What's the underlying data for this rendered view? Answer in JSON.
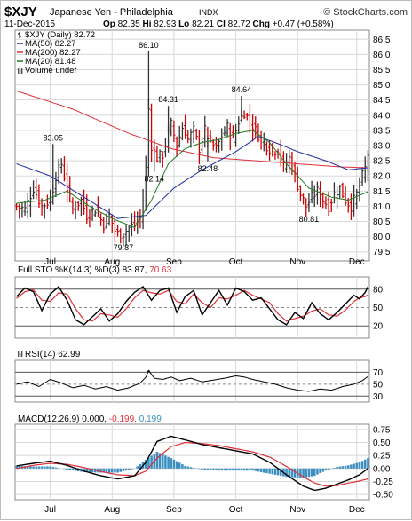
{
  "header": {
    "symbol": "$XJY",
    "name": "Japanese Yen - Philadelphia",
    "exchange": "INDX",
    "source": "© StockCharts.com",
    "date": "11-Dec-2015",
    "quote": {
      "open_label": "Op",
      "open": "82.35",
      "high_label": "Hi",
      "high": "82.93",
      "low_label": "Lo",
      "low": "82.21",
      "close_label": "Cl",
      "close": "82.72",
      "change_label": "Chg",
      "change": "+0.47 (+0.58%)"
    }
  },
  "colors": {
    "up_bar": "#333333",
    "down_bar": "#cc0000",
    "ma50": "#1f2fa0",
    "ma200": "#e0303a",
    "ma20": "#1f7a1f",
    "sto_k": "#000000",
    "sto_d": "#e0303a",
    "rsi": "#000000",
    "rsi_fill": "#2e8b2e",
    "macd": "#000000",
    "signal": "#e0303a",
    "hist": "#3a8fc0",
    "grid": "#d8d8d8"
  },
  "chart_data": [
    {
      "type": "ohlc",
      "id": "price",
      "legend": [
        {
          "key": "price",
          "label": "$XJY (Daily) 82.72",
          "color": "#000000"
        },
        {
          "key": "ma50",
          "label": "MA(50) 82.27",
          "color": "#1f2fa0"
        },
        {
          "key": "ma200",
          "label": "MA(200) 82.27",
          "color": "#e0303a"
        },
        {
          "key": "ma20",
          "label": "MA(20) 81.48",
          "color": "#1f7a1f"
        },
        {
          "key": "volume",
          "label": "Volume undef",
          "color": "#555555"
        }
      ],
      "ylim": [
        79.2,
        86.8
      ],
      "yticks": [
        "79.5",
        "80.0",
        "80.5",
        "81.0",
        "81.5",
        "82.0",
        "82.5",
        "83.0",
        "83.5",
        "84.0",
        "84.5",
        "85.0",
        "85.5",
        "86.0",
        "86.5"
      ],
      "months": [
        {
          "label": "Jul",
          "day": 12
        },
        {
          "label": "Aug",
          "day": 34
        },
        {
          "label": "Sep",
          "day": 56
        },
        {
          "label": "Oct",
          "day": 78
        },
        {
          "label": "Nov",
          "day": 100
        },
        {
          "label": "Dec",
          "day": 121
        }
      ],
      "days": 126,
      "anchors_close": [
        [
          0,
          81.0
        ],
        [
          3,
          80.9
        ],
        [
          6,
          81.6
        ],
        [
          9,
          81.0
        ],
        [
          12,
          81.2
        ],
        [
          14,
          82.0
        ],
        [
          16,
          82.4
        ],
        [
          18,
          81.6
        ],
        [
          20,
          80.9
        ],
        [
          23,
          81.2
        ],
        [
          25,
          80.7
        ],
        [
          28,
          80.9
        ],
        [
          31,
          80.4
        ],
        [
          33,
          80.7
        ],
        [
          35,
          80.2
        ],
        [
          37,
          80.0
        ],
        [
          40,
          80.3
        ],
        [
          42,
          80.4
        ],
        [
          44,
          80.6
        ],
        [
          45,
          81.2
        ],
        [
          46,
          82.3
        ],
        [
          47,
          84.2
        ],
        [
          48,
          83.0
        ],
        [
          50,
          82.6
        ],
        [
          52,
          82.7
        ],
        [
          54,
          83.4
        ],
        [
          55,
          83.7
        ],
        [
          57,
          83.0
        ],
        [
          59,
          83.6
        ],
        [
          61,
          83.2
        ],
        [
          63,
          83.5
        ],
        [
          65,
          82.9
        ],
        [
          67,
          83.5
        ],
        [
          69,
          83.1
        ],
        [
          71,
          82.9
        ],
        [
          73,
          83.3
        ],
        [
          75,
          83.6
        ],
        [
          77,
          83.2
        ],
        [
          79,
          83.8
        ],
        [
          81,
          84.1
        ],
        [
          83,
          83.8
        ],
        [
          85,
          83.5
        ],
        [
          87,
          83.2
        ],
        [
          89,
          83.0
        ],
        [
          91,
          82.8
        ],
        [
          93,
          82.9
        ],
        [
          95,
          82.3
        ],
        [
          97,
          82.6
        ],
        [
          99,
          82.0
        ],
        [
          101,
          81.4
        ],
        [
          103,
          81.0
        ],
        [
          105,
          81.3
        ],
        [
          107,
          81.5
        ],
        [
          109,
          81.2
        ],
        [
          111,
          81.0
        ],
        [
          113,
          81.4
        ],
        [
          115,
          81.6
        ],
        [
          117,
          81.2
        ],
        [
          119,
          81.0
        ],
        [
          121,
          81.4
        ],
        [
          123,
          82.0
        ],
        [
          124,
          82.25
        ],
        [
          125,
          82.72
        ]
      ],
      "extreme_labels": [
        {
          "text": "83.05",
          "day": 13,
          "value": 83.05
        },
        {
          "text": "79.87",
          "day": 38,
          "value": 79.87
        },
        {
          "text": "86.10",
          "day": 47,
          "value": 86.1
        },
        {
          "text": "84.31",
          "day": 54,
          "value": 84.31
        },
        {
          "text": "82.14",
          "day": 49,
          "value": 82.14
        },
        {
          "text": "82.48",
          "day": 68,
          "value": 82.48
        },
        {
          "text": "84.64",
          "day": 80,
          "value": 84.64
        },
        {
          "text": "80.81",
          "day": 104,
          "value": 80.81
        }
      ],
      "ma50_anchors": [
        [
          0,
          82.4
        ],
        [
          12,
          82.0
        ],
        [
          24,
          81.3
        ],
        [
          36,
          80.6
        ],
        [
          46,
          80.7
        ],
        [
          56,
          81.6
        ],
        [
          66,
          82.2
        ],
        [
          78,
          82.8
        ],
        [
          86,
          83.3
        ],
        [
          92,
          83.1
        ],
        [
          100,
          82.8
        ],
        [
          110,
          82.5
        ],
        [
          118,
          82.2
        ],
        [
          125,
          82.27
        ]
      ],
      "ma200_anchors": [
        [
          0,
          84.8
        ],
        [
          20,
          84.2
        ],
        [
          40,
          83.4
        ],
        [
          55,
          82.9
        ],
        [
          70,
          82.6
        ],
        [
          85,
          82.5
        ],
        [
          100,
          82.4
        ],
        [
          115,
          82.3
        ],
        [
          125,
          82.27
        ]
      ],
      "ma20_anchors": [
        [
          0,
          81.1
        ],
        [
          10,
          81.2
        ],
        [
          18,
          81.5
        ],
        [
          26,
          81.0
        ],
        [
          34,
          80.6
        ],
        [
          42,
          80.3
        ],
        [
          48,
          81.2
        ],
        [
          54,
          82.4
        ],
        [
          60,
          82.9
        ],
        [
          66,
          83.1
        ],
        [
          72,
          83.2
        ],
        [
          78,
          83.4
        ],
        [
          84,
          83.5
        ],
        [
          90,
          83.1
        ],
        [
          96,
          82.4
        ],
        [
          104,
          81.6
        ],
        [
          112,
          81.3
        ],
        [
          118,
          81.2
        ],
        [
          125,
          81.48
        ]
      ]
    },
    {
      "type": "line",
      "id": "sto",
      "legend_prefix": "Full STO %K(14,3) %D(3)",
      "legend_k": "83.87",
      "legend_d": "70.63",
      "ylim": [
        0,
        100
      ],
      "yticks": [
        "20",
        "50",
        "80"
      ],
      "levels": [
        20,
        50,
        80
      ],
      "k_anchors": [
        [
          0,
          68
        ],
        [
          3,
          82
        ],
        [
          6,
          76
        ],
        [
          9,
          45
        ],
        [
          12,
          72
        ],
        [
          15,
          84
        ],
        [
          18,
          62
        ],
        [
          21,
          30
        ],
        [
          24,
          22
        ],
        [
          27,
          35
        ],
        [
          30,
          48
        ],
        [
          33,
          28
        ],
        [
          36,
          40
        ],
        [
          39,
          60
        ],
        [
          42,
          75
        ],
        [
          45,
          84
        ],
        [
          48,
          62
        ],
        [
          51,
          78
        ],
        [
          54,
          82
        ],
        [
          57,
          42
        ],
        [
          60,
          68
        ],
        [
          63,
          78
        ],
        [
          66,
          38
        ],
        [
          69,
          58
        ],
        [
          72,
          78
        ],
        [
          75,
          54
        ],
        [
          78,
          82
        ],
        [
          81,
          76
        ],
        [
          84,
          62
        ],
        [
          87,
          66
        ],
        [
          90,
          48
        ],
        [
          93,
          30
        ],
        [
          96,
          22
        ],
        [
          99,
          42
        ],
        [
          102,
          32
        ],
        [
          105,
          58
        ],
        [
          108,
          40
        ],
        [
          111,
          30
        ],
        [
          114,
          42
        ],
        [
          117,
          56
        ],
        [
          120,
          70
        ],
        [
          122,
          64
        ],
        [
          124,
          75
        ],
        [
          125,
          83.87
        ]
      ],
      "d_anchors": [
        [
          0,
          65
        ],
        [
          3,
          76
        ],
        [
          6,
          79
        ],
        [
          9,
          62
        ],
        [
          12,
          60
        ],
        [
          15,
          74
        ],
        [
          18,
          72
        ],
        [
          21,
          48
        ],
        [
          24,
          30
        ],
        [
          27,
          28
        ],
        [
          30,
          40
        ],
        [
          33,
          38
        ],
        [
          36,
          34
        ],
        [
          39,
          48
        ],
        [
          42,
          66
        ],
        [
          45,
          78
        ],
        [
          48,
          74
        ],
        [
          51,
          72
        ],
        [
          54,
          78
        ],
        [
          57,
          60
        ],
        [
          60,
          56
        ],
        [
          63,
          72
        ],
        [
          66,
          58
        ],
        [
          69,
          50
        ],
        [
          72,
          66
        ],
        [
          75,
          64
        ],
        [
          78,
          70
        ],
        [
          81,
          78
        ],
        [
          84,
          70
        ],
        [
          87,
          64
        ],
        [
          90,
          58
        ],
        [
          93,
          40
        ],
        [
          96,
          28
        ],
        [
          99,
          32
        ],
        [
          102,
          36
        ],
        [
          105,
          44
        ],
        [
          108,
          48
        ],
        [
          111,
          38
        ],
        [
          114,
          36
        ],
        [
          117,
          46
        ],
        [
          120,
          60
        ],
        [
          122,
          66
        ],
        [
          124,
          68
        ],
        [
          125,
          70.63
        ]
      ]
    },
    {
      "type": "line",
      "id": "rsi",
      "legend_label": "RSI(14) 62.99",
      "ylim": [
        20,
        90
      ],
      "yticks": [
        "30",
        "50",
        "70"
      ],
      "levels": [
        30,
        70
      ],
      "values_anchors": [
        [
          0,
          50
        ],
        [
          4,
          54
        ],
        [
          8,
          46
        ],
        [
          12,
          58
        ],
        [
          16,
          52
        ],
        [
          20,
          44
        ],
        [
          24,
          48
        ],
        [
          28,
          42
        ],
        [
          32,
          46
        ],
        [
          36,
          40
        ],
        [
          40,
          44
        ],
        [
          44,
          52
        ],
        [
          46,
          62
        ],
        [
          47,
          73
        ],
        [
          49,
          60
        ],
        [
          52,
          58
        ],
        [
          55,
          62
        ],
        [
          58,
          56
        ],
        [
          62,
          60
        ],
        [
          66,
          54
        ],
        [
          70,
          57
        ],
        [
          74,
          60
        ],
        [
          78,
          64
        ],
        [
          81,
          62
        ],
        [
          84,
          58
        ],
        [
          88,
          54
        ],
        [
          92,
          50
        ],
        [
          96,
          44
        ],
        [
          100,
          40
        ],
        [
          104,
          38
        ],
        [
          108,
          42
        ],
        [
          112,
          40
        ],
        [
          116,
          46
        ],
        [
          120,
          50
        ],
        [
          123,
          56
        ],
        [
          125,
          62.99
        ]
      ]
    },
    {
      "type": "line",
      "id": "macd",
      "legend_label": "MACD(12,26,9)",
      "legend_macd": "0.000,",
      "legend_signal": "-0.199,",
      "legend_hist": "0.199",
      "ylim": [
        -0.6,
        0.85
      ],
      "yticks": [
        "-0.50",
        "-0.25",
        "0.00",
        "0.25",
        "0.50",
        "0.75"
      ],
      "macd_anchors": [
        [
          0,
          0.05
        ],
        [
          6,
          0.1
        ],
        [
          12,
          0.14
        ],
        [
          18,
          0.06
        ],
        [
          24,
          -0.05
        ],
        [
          30,
          -0.14
        ],
        [
          36,
          -0.2
        ],
        [
          42,
          -0.14
        ],
        [
          46,
          0.12
        ],
        [
          50,
          0.52
        ],
        [
          55,
          0.62
        ],
        [
          60,
          0.55
        ],
        [
          66,
          0.46
        ],
        [
          72,
          0.4
        ],
        [
          78,
          0.34
        ],
        [
          84,
          0.28
        ],
        [
          90,
          0.12
        ],
        [
          96,
          -0.12
        ],
        [
          102,
          -0.34
        ],
        [
          106,
          -0.42
        ],
        [
          110,
          -0.38
        ],
        [
          114,
          -0.3
        ],
        [
          118,
          -0.22
        ],
        [
          122,
          -0.12
        ],
        [
          125,
          0.0
        ]
      ],
      "signal_anchors": [
        [
          0,
          0.0
        ],
        [
          6,
          0.06
        ],
        [
          12,
          0.1
        ],
        [
          18,
          0.08
        ],
        [
          24,
          0.02
        ],
        [
          30,
          -0.06
        ],
        [
          36,
          -0.12
        ],
        [
          42,
          -0.14
        ],
        [
          46,
          -0.05
        ],
        [
          50,
          0.2
        ],
        [
          55,
          0.42
        ],
        [
          60,
          0.5
        ],
        [
          66,
          0.48
        ],
        [
          72,
          0.44
        ],
        [
          78,
          0.38
        ],
        [
          84,
          0.32
        ],
        [
          90,
          0.22
        ],
        [
          96,
          0.04
        ],
        [
          102,
          -0.16
        ],
        [
          106,
          -0.28
        ],
        [
          110,
          -0.34
        ],
        [
          114,
          -0.33
        ],
        [
          118,
          -0.28
        ],
        [
          122,
          -0.24
        ],
        [
          125,
          -0.199
        ]
      ]
    }
  ],
  "x_labels": [
    "Jul",
    "Aug",
    "Sep",
    "Oct",
    "Nov",
    "Dec"
  ]
}
